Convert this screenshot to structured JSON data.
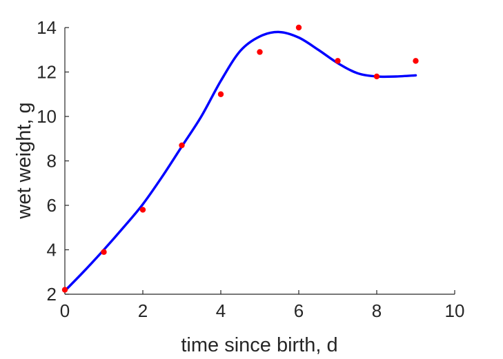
{
  "chart_data": {
    "type": "scatter",
    "xlabel": "time since birth, d",
    "ylabel": "wet weight, g",
    "xlim": [
      0,
      10
    ],
    "ylim": [
      2,
      14
    ],
    "xticks": [
      "0",
      "2",
      "4",
      "6",
      "8",
      "10"
    ],
    "yticks": [
      "2",
      "4",
      "6",
      "8",
      "10",
      "12",
      "14"
    ],
    "grid": false,
    "legend": "none",
    "series": [
      {
        "kind": "points",
        "color": "#ff0000",
        "x": [
          0,
          1,
          2,
          3,
          4,
          5,
          6,
          7,
          8,
          9
        ],
        "y": [
          2.2,
          3.9,
          5.8,
          8.7,
          11.0,
          12.9,
          14.0,
          12.5,
          11.8,
          12.5
        ]
      },
      {
        "kind": "line",
        "color": "#0000ff",
        "x": [
          0,
          0.5,
          1,
          1.5,
          2,
          2.5,
          3,
          3.5,
          4,
          4.5,
          5,
          5.5,
          6,
          6.5,
          7,
          7.5,
          8,
          8.5,
          9
        ],
        "y": [
          2.15,
          3.05,
          4.0,
          5.0,
          6.05,
          7.3,
          8.65,
          10.0,
          11.6,
          12.95,
          13.6,
          13.8,
          13.55,
          13.0,
          12.4,
          11.95,
          11.8,
          11.8,
          11.85
        ]
      }
    ]
  }
}
